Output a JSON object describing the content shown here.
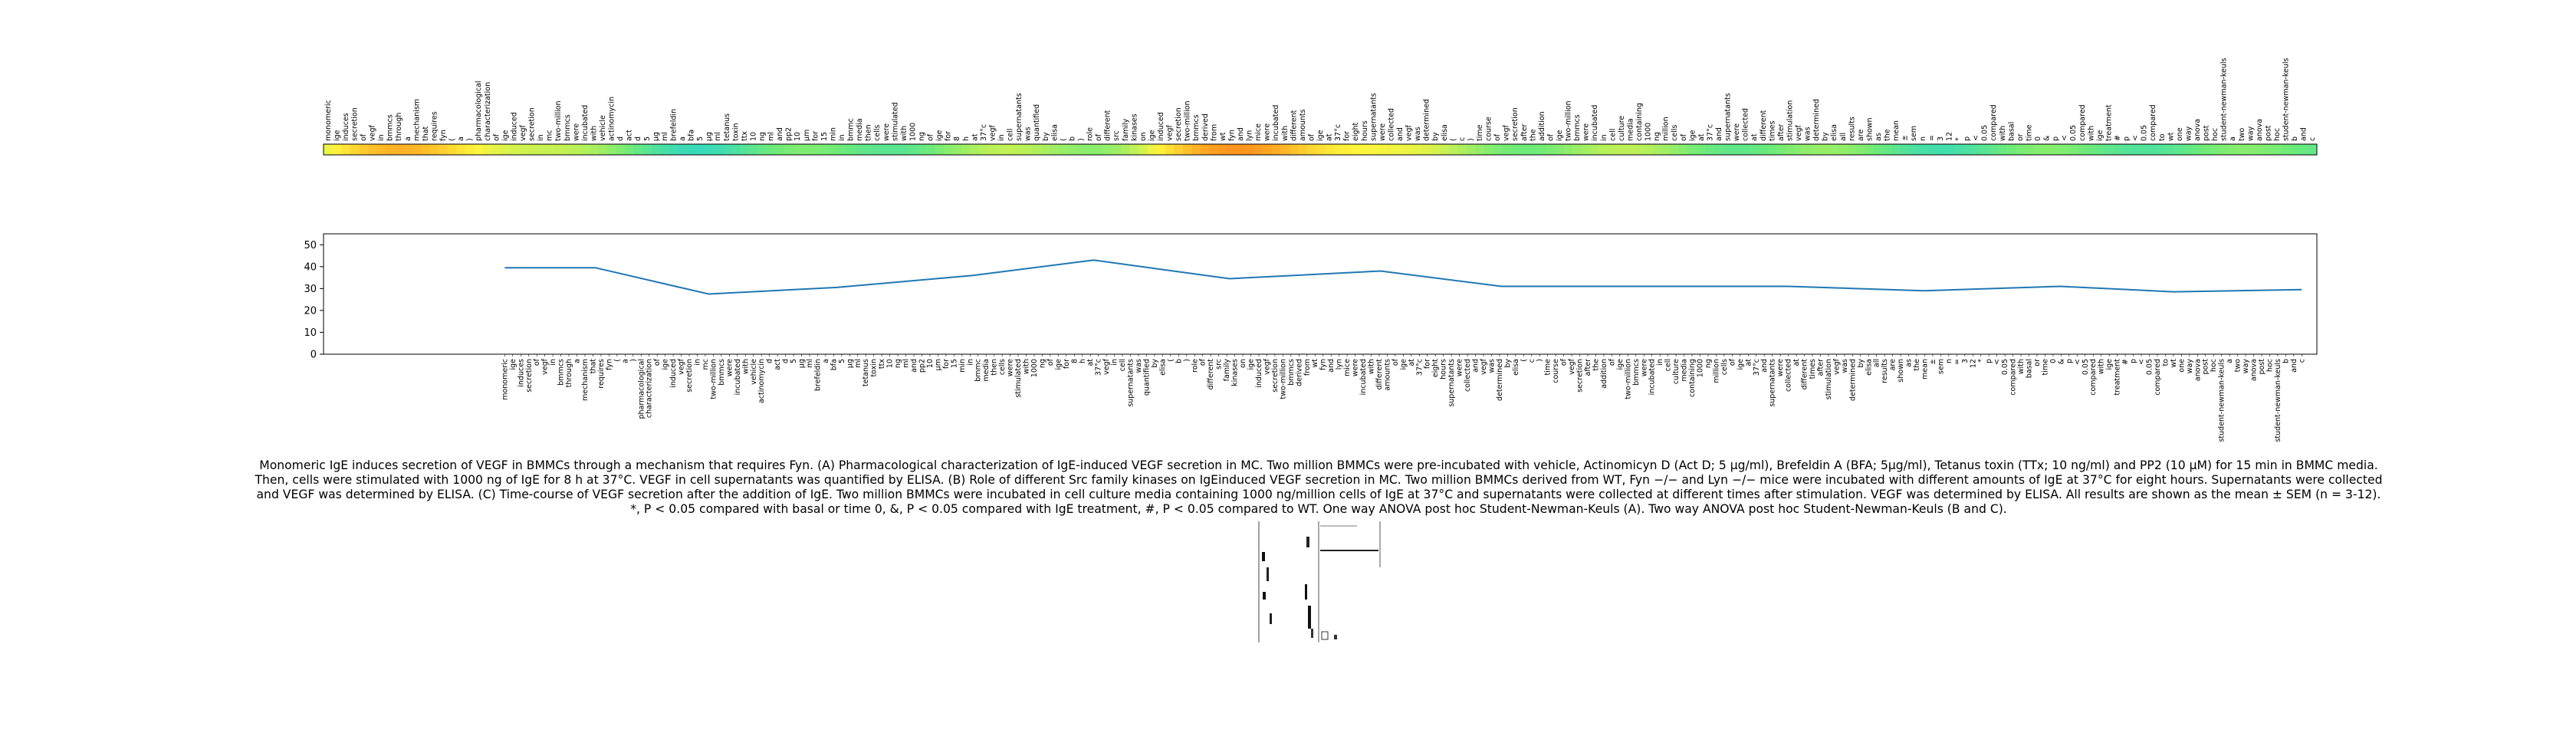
{
  "chart_data": [
    {
      "type": "heatmap",
      "tokens": [
        "monomeric",
        "ige",
        "induces",
        "secretion",
        "of",
        "vegf",
        "in",
        "bmmcs",
        "through",
        "a",
        "mechanism",
        "that",
        "requires",
        "fyn",
        "(",
        "a",
        ")",
        "pharmacological",
        "characterization",
        "of",
        "ige",
        "induced",
        "vegf",
        "secretion",
        "in",
        "mc",
        "two-million",
        "bmmcs",
        "were",
        "incubated",
        "with",
        "vehicle",
        "actinomycin",
        "d",
        "act",
        "d",
        "5",
        "μg",
        "ml",
        "brefeldin",
        "a",
        "bfa",
        "5",
        "μg",
        "ml",
        "tetanus",
        "toxin",
        "ttx",
        "10",
        "ng",
        "ml",
        "and",
        "pp2",
        "10",
        "μm",
        "for",
        "15",
        "min",
        "in",
        "bmmc",
        "media",
        "then",
        "cells",
        "were",
        "stimulated",
        "with",
        "1000",
        "ng",
        "of",
        "ige",
        "for",
        "8",
        "h",
        "at",
        "37°c",
        "vegf",
        "in",
        "cell",
        "supernatants",
        "was",
        "quantified",
        "by",
        "elisa",
        "(",
        "b",
        ")",
        "role",
        "of",
        "different",
        "src",
        "family",
        "kinases",
        "on",
        "ige",
        "induced",
        "vegf",
        "secretion",
        "two-million",
        "bmmcs",
        "derived",
        "from",
        "wt",
        "fyn",
        "and",
        "lyn",
        "mice",
        "were",
        "incubated",
        "with",
        "different",
        "amounts",
        "of",
        "ige",
        "at",
        "37°c",
        "for",
        "eight",
        "hours",
        "supernatants",
        "were",
        "collected",
        "and",
        "vegf",
        "was",
        "determined",
        "by",
        "elisa",
        "(",
        "c",
        ")",
        "time",
        "course",
        "of",
        "vegf",
        "secretion",
        "after",
        "the",
        "addition",
        "of",
        "ige",
        "two-million",
        "bmmcs",
        "were",
        "incubated",
        "in",
        "cell",
        "culture",
        "media",
        "containing",
        "1000",
        "ng",
        "million",
        "cells",
        "of",
        "ige",
        "at",
        "37°c",
        "and",
        "supernatants",
        "were",
        "collected",
        "at",
        "different",
        "times",
        "after",
        "stimulation",
        "vegf",
        "was",
        "determined",
        "by",
        "elisa",
        "all",
        "results",
        "are",
        "shown",
        "as",
        "the",
        "mean",
        "±",
        "sem",
        "n",
        "=",
        "3",
        "12",
        "*",
        "p",
        "<",
        "0.05",
        "compared",
        "with",
        "basal",
        "or",
        "time",
        "0",
        "&",
        "p",
        "<",
        "0.05",
        "compared",
        "with",
        "ige",
        "treatment",
        "#",
        "p",
        "<",
        "0.05",
        "compared",
        "to",
        "wt",
        "one",
        "way",
        "anova",
        "post",
        "hoc",
        "student-newman-keuls",
        "a",
        "two",
        "way",
        "anova",
        "post",
        "hoc",
        "student-newman-keuls",
        "b",
        "and",
        "c"
      ]
    },
    {
      "type": "line",
      "y_ticks": [
        0,
        10,
        20,
        30,
        40,
        50
      ],
      "ylim": [
        0,
        55
      ],
      "x": [
        0,
        12,
        27,
        44,
        62,
        78,
        96,
        116,
        132,
        150,
        170,
        188,
        206,
        221,
        238
      ],
      "values": [
        39.5,
        39.5,
        27.5,
        30.5,
        36,
        43,
        34.5,
        38,
        31,
        31,
        31,
        29,
        31,
        28.5,
        29.5
      ],
      "x_range": [
        -24,
        240
      ]
    }
  ],
  "caption": "Monomeric IgE induces secretion of VEGF in BMMCs through a mechanism that requires Fyn. (A) Pharmacological characterization of IgE-induced VEGF secretion in MC. Two million BMMCs were pre-incubated with vehicle, Actinomicyn D (Act D; 5 µg/ml), Brefeldin A (BFA; 5µg/ml), Tetanus toxin (TTx; 10 ng/ml) and PP2 (10 µM) for 15 min in BMMC media. Then, cells were stimulated with 1000 ng of IgE for 8 h at 37°C. VEGF in cell supernatants was quantified by ELISA. (B) Role of different Src family kinases on IgEinduced VEGF secretion in MC. Two million BMMCs derived from WT, Fyn −/− and Lyn −/− mice were incubated with different amounts of IgE at 37°C for eight hours. Supernatants were collected and VEGF was determined by ELISA. (C) Time-course of VEGF secretion after the addition of IgE. Two million BMMCs were incubated in cell culture media containing 1000 ng/million cells of IgE at 37°C and supernatants were collected at different times after stimulation. VEGF was determined by ELISA. All results are shown as the mean ± SEM (n = 3-12). *, P < 0.05 compared with basal or time 0, &, P < 0.05 compared with IgE treatment, #, P < 0.05 compared to WT. One way ANOVA post hoc Student-Newman-Keuls (A). Two way ANOVA post hoc Student-Newman-Keuls (B and C)."
}
